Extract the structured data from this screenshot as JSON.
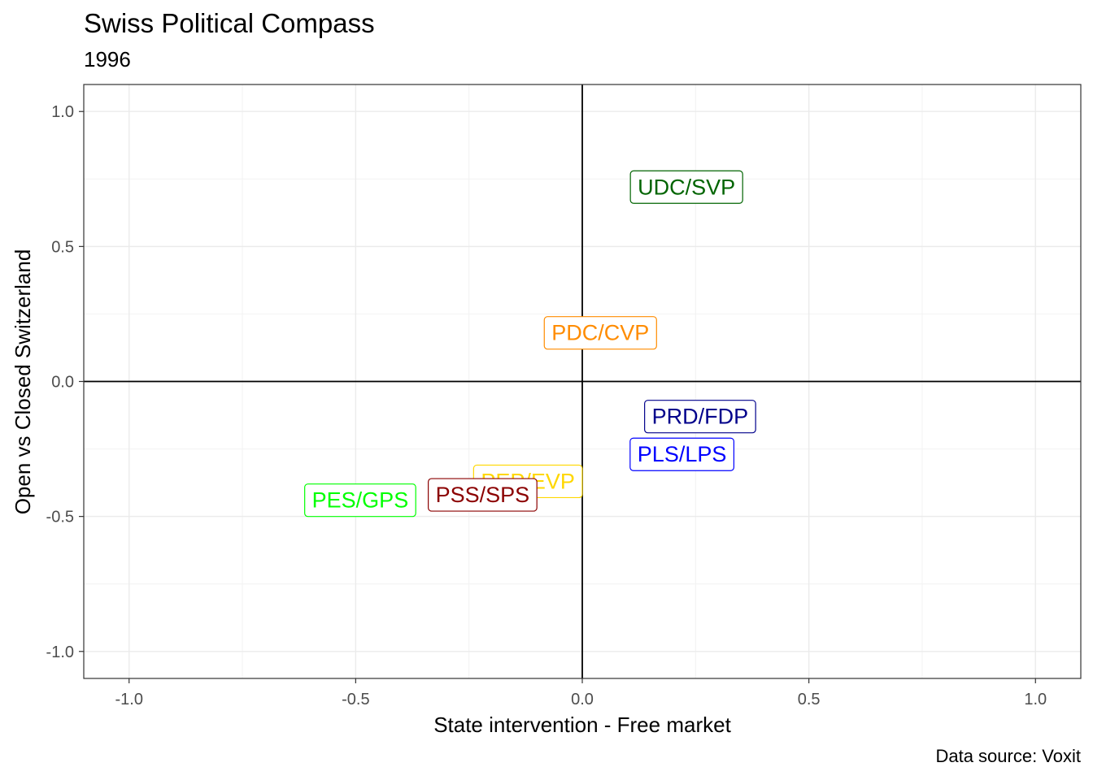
{
  "chart_data": {
    "type": "scatter",
    "title": "Swiss Political Compass",
    "subtitle": "1996",
    "caption": "Data source: Voxit",
    "xlabel": "State intervention - Free market",
    "ylabel": "Open vs Closed Switzerland",
    "xlim": [
      -1.1,
      1.1
    ],
    "ylim": [
      -1.1,
      1.1
    ],
    "xticks": [
      "-1.0",
      "-0.5",
      "0.0",
      "0.5",
      "1.0"
    ],
    "yticks": [
      "1.0",
      "0.5",
      "0.0",
      "-0.5",
      "-1.0"
    ],
    "xtick_values": [
      -1.0,
      -0.5,
      0.0,
      0.5,
      1.0
    ],
    "ytick_values": [
      1.0,
      0.5,
      0.0,
      -0.5,
      -1.0
    ],
    "grid": true,
    "reference_lines": {
      "x": 0,
      "y": 0
    },
    "points": [
      {
        "label": "UDC/SVP",
        "x": 0.23,
        "y": 0.72,
        "color": "#006400"
      },
      {
        "label": "PDC/CVP",
        "x": 0.04,
        "y": 0.18,
        "color": "#FF8C00"
      },
      {
        "label": "PRD/FDP",
        "x": 0.26,
        "y": -0.13,
        "color": "#00008B"
      },
      {
        "label": "PLS/LPS",
        "x": 0.22,
        "y": -0.27,
        "color": "#0000FF"
      },
      {
        "label": "PEP/EVP",
        "x": -0.12,
        "y": -0.37,
        "color": "#FFD700"
      },
      {
        "label": "PSS/SPS",
        "x": -0.22,
        "y": -0.42,
        "color": "#8B0000"
      },
      {
        "label": "PES/GPS",
        "x": -0.49,
        "y": -0.44,
        "color": "#00FF00"
      }
    ]
  }
}
